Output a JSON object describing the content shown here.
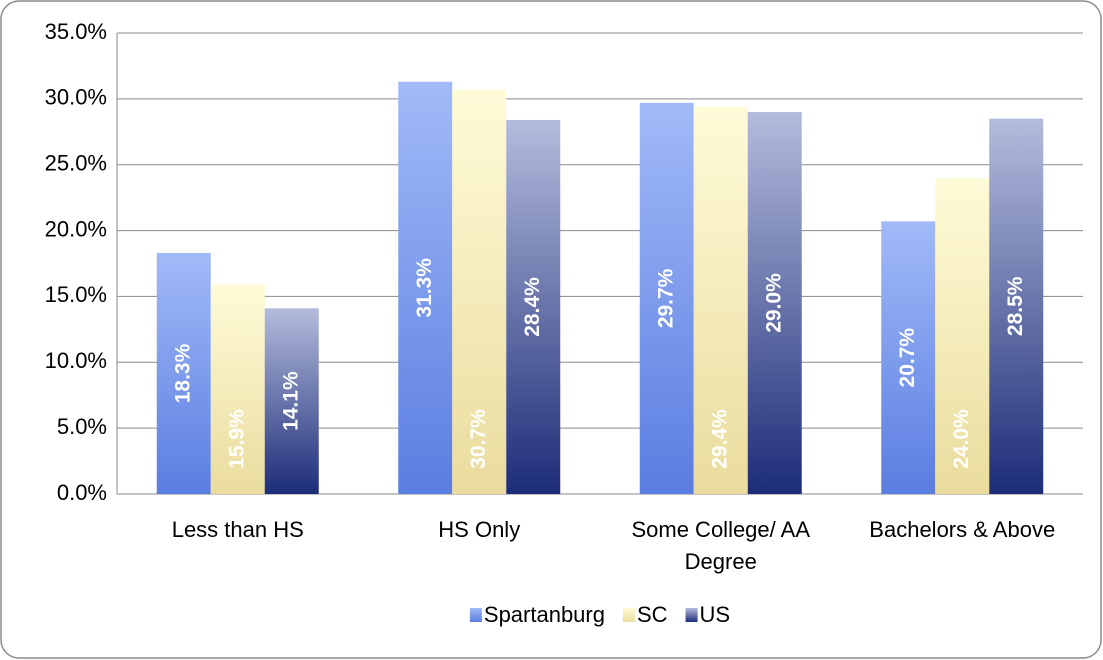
{
  "chart_data": {
    "type": "bar",
    "categories": [
      "Less than HS",
      "HS Only",
      "Some College/ AA Degree",
      "Bachelors & Above"
    ],
    "series": [
      {
        "name": "Spartanburg",
        "color": "#5a7de0",
        "gradient": [
          "#a2baf8",
          "#5a7de0"
        ],
        "label_position": "center",
        "values": [
          18.3,
          31.3,
          29.7,
          20.7
        ],
        "value_labels": [
          "18.3%",
          "31.3%",
          "29.7%",
          "20.7%"
        ]
      },
      {
        "name": "SC",
        "color": "#f7efc0",
        "gradient": [
          "#fffbd8",
          "#eadc9e"
        ],
        "label_position": "base",
        "values": [
          15.9,
          30.7,
          29.4,
          24.0
        ],
        "value_labels": [
          "15.9%",
          "30.7%",
          "29.4%",
          "24.0%"
        ]
      },
      {
        "name": "US",
        "color": "#2c3e8a",
        "gradient": [
          "#b4bcdc",
          "#1c2c78"
        ],
        "label_position": "center",
        "values": [
          14.1,
          28.4,
          29.0,
          28.5
        ],
        "value_labels": [
          "14.1%",
          "28.4%",
          "29.0%",
          "28.5%"
        ]
      }
    ],
    "ylim": [
      0,
      35
    ],
    "yticks": [
      {
        "value": 0,
        "label": "0.0%"
      },
      {
        "value": 5,
        "label": "5.0%"
      },
      {
        "value": 10,
        "label": "10.0%"
      },
      {
        "value": 15,
        "label": "15.0%"
      },
      {
        "value": 20,
        "label": "20.0%"
      },
      {
        "value": 25,
        "label": "25.0%"
      },
      {
        "value": 30,
        "label": "30.0%"
      },
      {
        "value": 35,
        "label": "35.0%"
      }
    ],
    "grid": true,
    "legend": "bottom"
  }
}
